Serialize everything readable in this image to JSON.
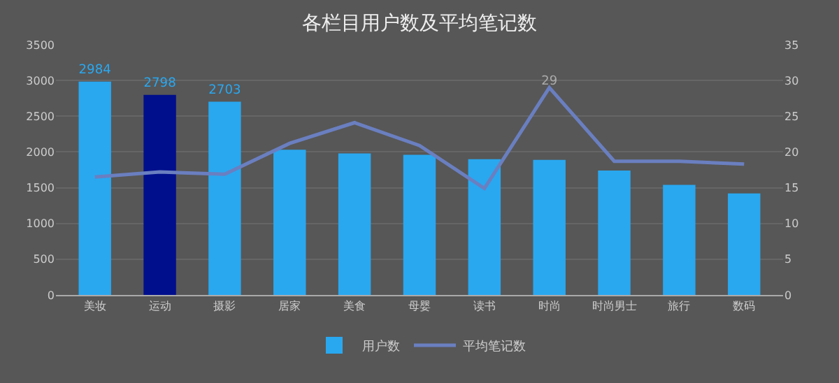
{
  "chart_data": {
    "type": "bar",
    "title": "各栏目用户数及平均笔记数",
    "categories": [
      "美妆",
      "运动",
      "摄影",
      "居家",
      "美食",
      "母婴",
      "读书",
      "时尚",
      "时尚男士",
      "旅行",
      "数码"
    ],
    "series": [
      {
        "name": "用户数",
        "color": "#29a8f0",
        "colors": [
          "#29a8f0",
          "#000f8c",
          "#29a8f0",
          "#29a8f0",
          "#29a8f0",
          "#29a8f0",
          "#29a8f0",
          "#29a8f0",
          "#29a8f0",
          "#29a8f0",
          "#29a8f0"
        ],
        "values": [
          2984,
          2798,
          2703,
          2030,
          1980,
          1960,
          1900,
          1890,
          1740,
          1540,
          1420
        ],
        "value_labels": [
          "2984",
          "2798",
          "2703",
          null,
          null,
          null,
          null,
          null,
          null,
          null,
          null
        ]
      },
      {
        "name": "平均笔记数",
        "type": "line",
        "axis": "y2",
        "color": "#6a7fc0",
        "values": [
          16.5,
          17.2,
          16.9,
          21.2,
          24.1,
          20.9,
          14.9,
          29,
          18.7,
          18.7,
          18.3
        ],
        "value_labels": [
          null,
          null,
          null,
          null,
          null,
          null,
          null,
          "29",
          null,
          null,
          null
        ]
      }
    ],
    "ylim": [
      0,
      3500
    ],
    "yticks": [
      0,
      500,
      1000,
      1500,
      2000,
      2500,
      3000,
      3500
    ],
    "y2lim": [
      0,
      35
    ],
    "y2ticks": [
      0,
      5,
      10,
      15,
      20,
      25,
      30,
      35
    ],
    "grid": "y",
    "legend": "bottom",
    "marker": "none",
    "line_style": "solid"
  }
}
